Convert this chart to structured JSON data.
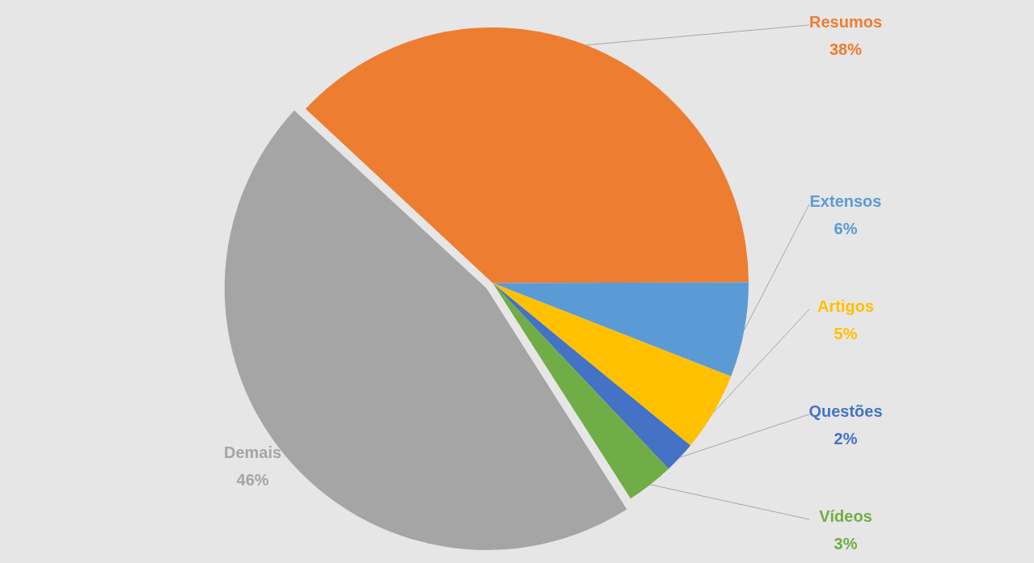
{
  "chart_data": {
    "type": "pie",
    "categories": [
      "Resumos",
      "Extensos",
      "Artigos",
      "Questões",
      "Vídeos",
      "Demais"
    ],
    "values": [
      38,
      6,
      5,
      2,
      3,
      46
    ],
    "colors": [
      "#ed7d31",
      "#5b9bd5",
      "#ffc000",
      "#4472c4",
      "#70ad47",
      "#a5a5a5"
    ],
    "value_labels": [
      "38%",
      "6%",
      "5%",
      "2%",
      "3%",
      "46%"
    ],
    "legend": false
  }
}
